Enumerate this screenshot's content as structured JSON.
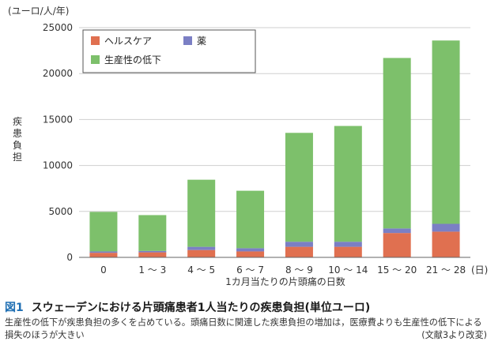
{
  "chart_data": {
    "type": "bar",
    "stacked": true,
    "unit_label": "(ユーロ/人/年)",
    "ylabel": "疾患負担",
    "xlabel": "1カ月当たりの片頭痛の日数",
    "x_unit": "(日)",
    "ylim": [
      0,
      25000
    ],
    "yticks": [
      0,
      5000,
      10000,
      15000,
      20000,
      25000
    ],
    "grid": true,
    "legend_position": "top-left",
    "categories": [
      "0",
      "1 〜 3",
      "4 〜 5",
      "6 〜 7",
      "8 〜 9",
      "10 〜 14",
      "15 〜 20",
      "21 〜 28"
    ],
    "series": [
      {
        "name": "ヘルスケア",
        "color": "#e07050",
        "values": [
          500,
          550,
          800,
          650,
          1150,
          1150,
          2650,
          2800
        ]
      },
      {
        "name": "薬",
        "color": "#7b7fc4",
        "values": [
          150,
          150,
          350,
          350,
          550,
          550,
          500,
          850
        ]
      },
      {
        "name": "生産性の低下",
        "color": "#7dc06b",
        "values": [
          4300,
          3900,
          7300,
          6250,
          11850,
          12600,
          18550,
          19950
        ]
      }
    ],
    "legend_order": [
      0,
      1,
      2
    ]
  },
  "caption": {
    "figure_label": "図1",
    "title": "スウェーデンにおける片頭痛患者1人当たりの疾患負担(単位ユーロ)",
    "body": "生産性の低下が疾患負担の多くを占めている。頭痛日数に関連した疾患負担の増加は，医療費よりも生産性の低下による損失のほうが大きい",
    "source": "(文献3より改変)"
  }
}
